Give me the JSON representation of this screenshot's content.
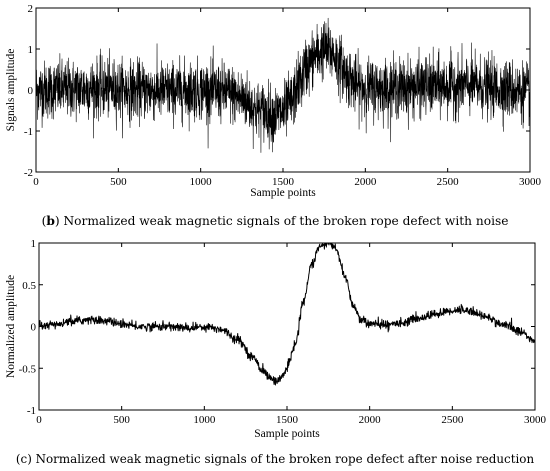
{
  "chart_data": [
    {
      "type": "line",
      "panel": "b",
      "caption_letter": "b",
      "caption_text": "Normalized weak magnetic signals of the broken rope defect with noise",
      "xlabel": "Sample points",
      "ylabel": "Signals amplitude",
      "xlim": [
        0,
        3000
      ],
      "ylim": [
        -2,
        2
      ],
      "xticks": [
        "0",
        "500",
        "1000",
        "1500",
        "2000",
        "2500",
        "3000"
      ],
      "yticks": [
        "-2",
        "-1",
        "0",
        "1",
        "2"
      ],
      "grid": false,
      "series": [
        {
          "x": [
            0,
            200,
            400,
            600,
            800,
            1000,
            1150,
            1250,
            1350,
            1450,
            1500,
            1550,
            1600,
            1650,
            1700,
            1750,
            1800,
            1850,
            1900,
            1950,
            2000,
            2200,
            2400,
            2600,
            2800,
            3000
          ],
          "envelope_center": [
            0.0,
            0.02,
            0.05,
            0.0,
            -0.02,
            0.0,
            -0.05,
            -0.2,
            -0.5,
            -0.6,
            -0.55,
            -0.3,
            0.2,
            0.6,
            0.85,
            1.0,
            0.9,
            0.6,
            0.3,
            0.1,
            0.05,
            0.05,
            0.1,
            0.12,
            0.05,
            -0.05
          ],
          "noise_amplitude": 0.35,
          "color": "#000000"
        }
      ]
    },
    {
      "type": "line",
      "panel": "c",
      "caption_letter": "c",
      "caption_text": "Normalized weak magnetic signals of the broken rope defect after noise reduction",
      "xlabel": "Sample points",
      "ylabel": "Normalized amplitude",
      "xlim": [
        0,
        3000
      ],
      "ylim": [
        -1,
        1
      ],
      "xticks": [
        "0",
        "500",
        "1000",
        "1500",
        "2000",
        "2500",
        "3000"
      ],
      "yticks": [
        "-1",
        "-0.5",
        "0",
        "0.5",
        "1"
      ],
      "grid": false,
      "series": [
        {
          "x": [
            0,
            100,
            200,
            300,
            400,
            500,
            600,
            700,
            800,
            900,
            1000,
            1100,
            1200,
            1300,
            1350,
            1400,
            1430,
            1450,
            1480,
            1500,
            1550,
            1600,
            1650,
            1700,
            1750,
            1780,
            1800,
            1850,
            1900,
            1950,
            2000,
            2100,
            2200,
            2300,
            2400,
            2500,
            2550,
            2600,
            2700,
            2800,
            2900,
            3000
          ],
          "y": [
            0.0,
            0.02,
            0.06,
            0.08,
            0.07,
            0.03,
            0.0,
            0.0,
            0.0,
            -0.02,
            0.0,
            -0.03,
            -0.15,
            -0.38,
            -0.52,
            -0.62,
            -0.65,
            -0.64,
            -0.58,
            -0.5,
            -0.2,
            0.3,
            0.75,
            0.96,
            1.0,
            0.97,
            0.9,
            0.6,
            0.25,
            0.08,
            0.03,
            0.02,
            0.05,
            0.1,
            0.15,
            0.19,
            0.2,
            0.19,
            0.12,
            0.03,
            -0.05,
            -0.18
          ],
          "noise_amplitude": 0.025,
          "color": "#000000"
        }
      ]
    }
  ]
}
